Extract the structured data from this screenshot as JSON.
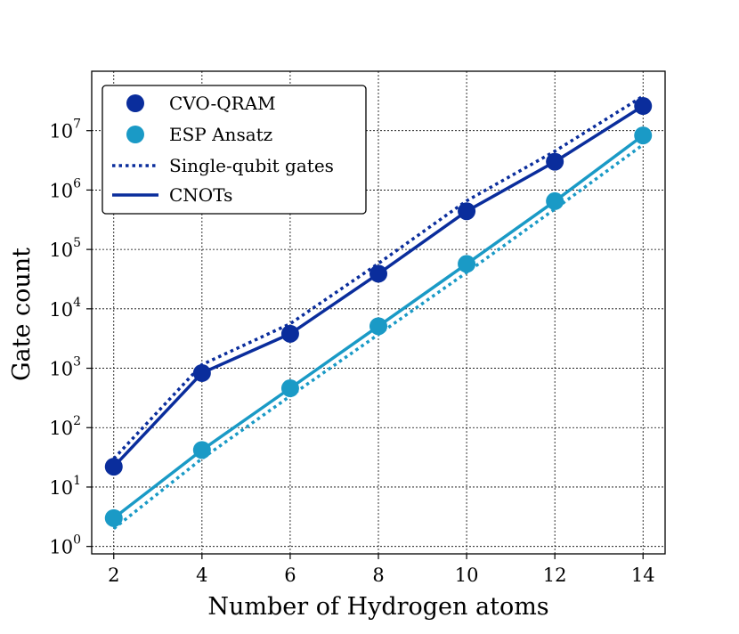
{
  "chart_data": {
    "type": "line",
    "xlabel": "Number of Hydrogen atoms",
    "ylabel": "Gate count",
    "x": [
      2,
      4,
      6,
      8,
      10,
      12,
      14
    ],
    "x_ticks": [
      2,
      4,
      6,
      8,
      10,
      12,
      14
    ],
    "xlim": [
      1.5,
      14.5
    ],
    "y_scale": "log",
    "ylim": [
      0.75,
      100000000
    ],
    "y_ticks": [
      {
        "base": "10",
        "exp": "0",
        "value": 1
      },
      {
        "base": "10",
        "exp": "1",
        "value": 10
      },
      {
        "base": "10",
        "exp": "2",
        "value": 100
      },
      {
        "base": "10",
        "exp": "3",
        "value": 1000
      },
      {
        "base": "10",
        "exp": "4",
        "value": 10000
      },
      {
        "base": "10",
        "exp": "5",
        "value": 100000
      },
      {
        "base": "10",
        "exp": "6",
        "value": 1000000
      },
      {
        "base": "10",
        "exp": "7",
        "value": 10000000
      }
    ],
    "grid": true,
    "legend_position": "top-left",
    "legend": [
      {
        "label": "CVO-QRAM",
        "kind": "marker",
        "color": "#0a2d9c"
      },
      {
        "label": "ESP Ansatz",
        "kind": "marker",
        "color": "#1a9ac6"
      },
      {
        "label": "Single-qubit gates",
        "kind": "dotted",
        "color": "#0a2d9c"
      },
      {
        "label": "CNOTs",
        "kind": "solid",
        "color": "#0a2d9c"
      }
    ],
    "series": [
      {
        "group": "CVO-QRAM",
        "kind": "CNOTs",
        "style": "solid",
        "markers": true,
        "color": "#0a2d9c",
        "values": [
          22,
          830,
          3800,
          39000,
          440000,
          3000000,
          26000000
        ]
      },
      {
        "group": "CVO-QRAM",
        "kind": "Single-qubit gates",
        "style": "dotted",
        "markers": false,
        "color": "#0a2d9c",
        "values": [
          30,
          1150,
          5600,
          58000,
          660000,
          4500000,
          38000000
        ]
      },
      {
        "group": "ESP Ansatz",
        "kind": "CNOTs",
        "style": "solid",
        "markers": true,
        "color": "#1a9ac6",
        "values": [
          3,
          42,
          460,
          5100,
          57000,
          650000,
          8300000
        ]
      },
      {
        "group": "ESP Ansatz",
        "kind": "Single-qubit gates",
        "style": "dotted",
        "markers": false,
        "color": "#1a9ac6",
        "values": [
          2,
          30,
          340,
          3700,
          41000,
          480000,
          5800000
        ]
      }
    ]
  }
}
